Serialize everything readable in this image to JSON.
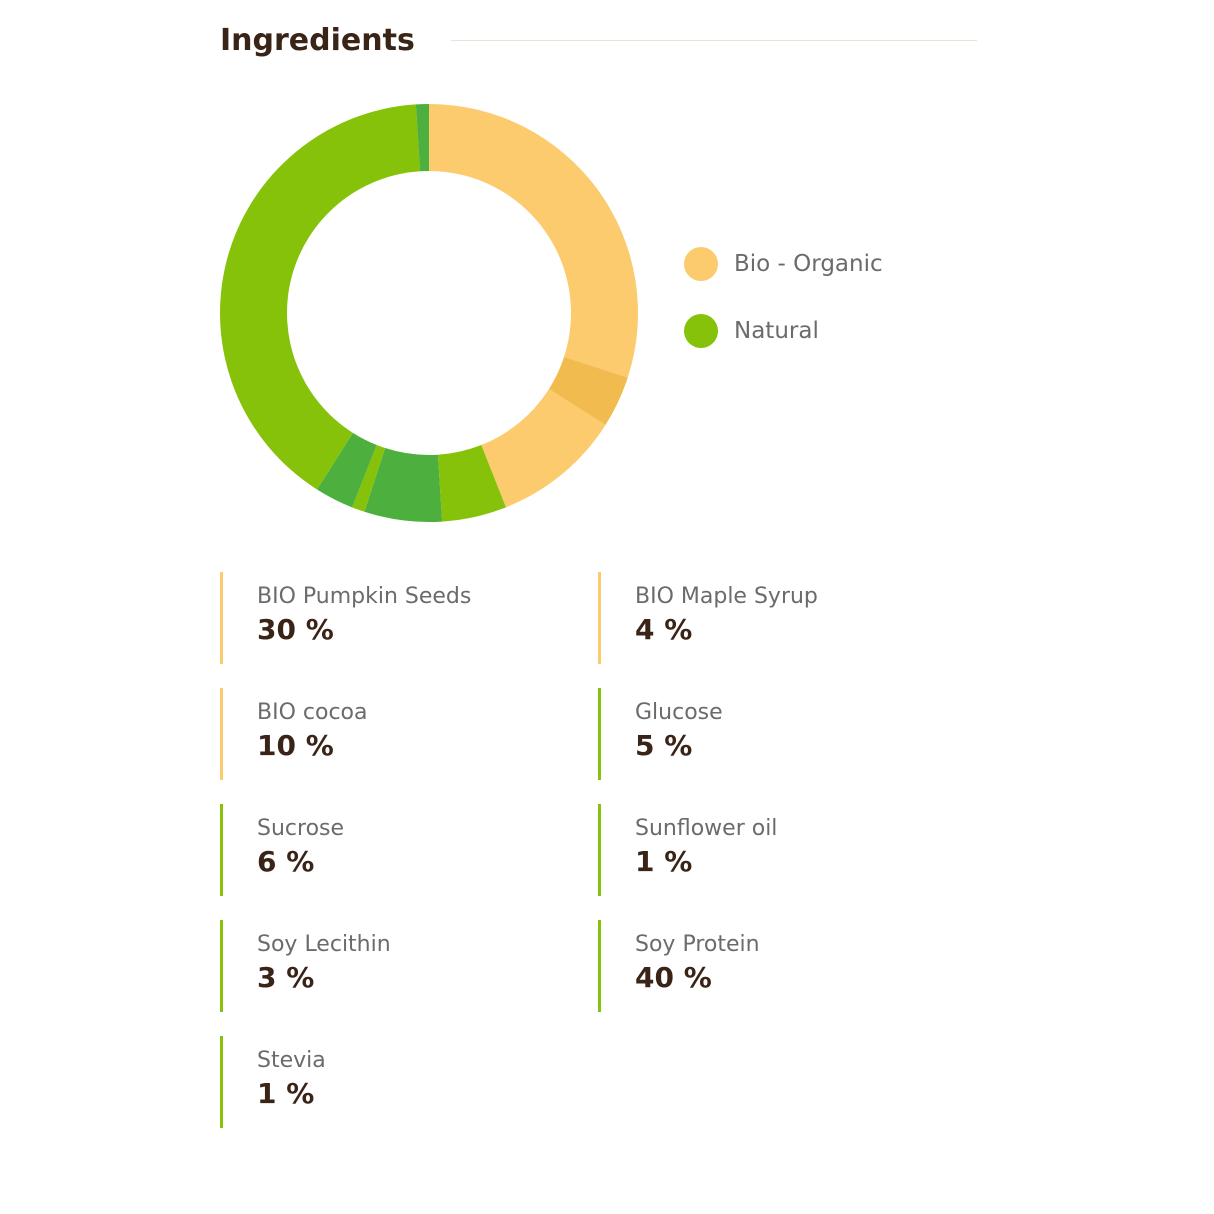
{
  "header": {
    "title": "Ingredients"
  },
  "colors": {
    "bio_organic": "#fbcb6e",
    "bio_organic_dark": "#f2bb4f",
    "natural": "#86c20a",
    "natural_dark": "#4caf3e"
  },
  "legend": [
    {
      "label": "Bio - Organic",
      "color": "#fbcb6e"
    },
    {
      "label": "Natural",
      "color": "#86c20a"
    }
  ],
  "ingredients": [
    {
      "name": "BIO Pumpkin Seeds",
      "value": "30 %",
      "category": "bio"
    },
    {
      "name": "BIO Maple Syrup",
      "value": "4 %",
      "category": "bio"
    },
    {
      "name": "BIO cocoa",
      "value": "10 %",
      "category": "bio"
    },
    {
      "name": "Glucose",
      "value": "5 %",
      "category": "natural"
    },
    {
      "name": "Sucrose",
      "value": "6 %",
      "category": "natural"
    },
    {
      "name": "Sunflower oil",
      "value": "1 %",
      "category": "natural"
    },
    {
      "name": "Soy Lecithin",
      "value": "3 %",
      "category": "natural"
    },
    {
      "name": "Soy Protein",
      "value": "40 %",
      "category": "natural"
    },
    {
      "name": "Stevia",
      "value": "1 %",
      "category": "natural"
    }
  ],
  "chart_data": {
    "type": "pie",
    "categories": [
      "BIO Pumpkin Seeds",
      "BIO Maple Syrup",
      "BIO cocoa",
      "Glucose",
      "Sucrose",
      "Sunflower oil",
      "Soy Lecithin",
      "Soy Protein",
      "Stevia"
    ],
    "values": [
      30,
      4,
      10,
      5,
      6,
      1,
      3,
      40,
      1
    ],
    "colors": [
      "#fbcb6e",
      "#f2bb4f",
      "#fbcb6e",
      "#86c20a",
      "#4caf3e",
      "#86c20a",
      "#4caf3e",
      "#86c20a",
      "#4caf3e"
    ],
    "donut": true,
    "legend_position": "right"
  }
}
